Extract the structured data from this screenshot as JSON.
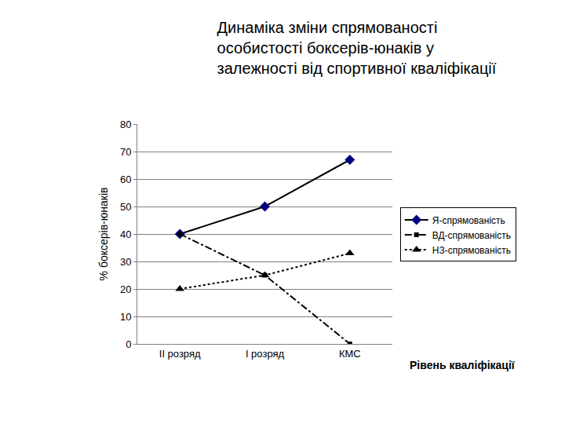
{
  "chart_data": {
    "type": "line",
    "title": "Динаміка зміни спрямованості особистості боксерів-юнаків у залежності від спортивної кваліфікації",
    "x_label": "Рівень кваліфікації",
    "y_label": "% боксерів-юнаків",
    "categories": [
      "ІІ розряд",
      "І розряд",
      "КМС"
    ],
    "series": [
      {
        "name": "Я-спрямованість",
        "color": "#000080",
        "marker": "diamond",
        "line_style": "solid",
        "values": [
          40,
          50,
          67
        ]
      },
      {
        "name": "ВД-спрямованість",
        "color": "#000000",
        "marker": "square",
        "line_style": "dashdot",
        "values": [
          40,
          25,
          0
        ]
      },
      {
        "name": "НЗ-спрямованість",
        "color": "#000000",
        "marker": "triangle-up",
        "line_style": "dot",
        "values": [
          20,
          25,
          33
        ]
      }
    ],
    "ylim": [
      0,
      80
    ],
    "yticks": [
      0,
      10,
      20,
      30,
      40,
      50,
      60,
      70,
      80
    ],
    "grid": true,
    "legend": "right"
  }
}
